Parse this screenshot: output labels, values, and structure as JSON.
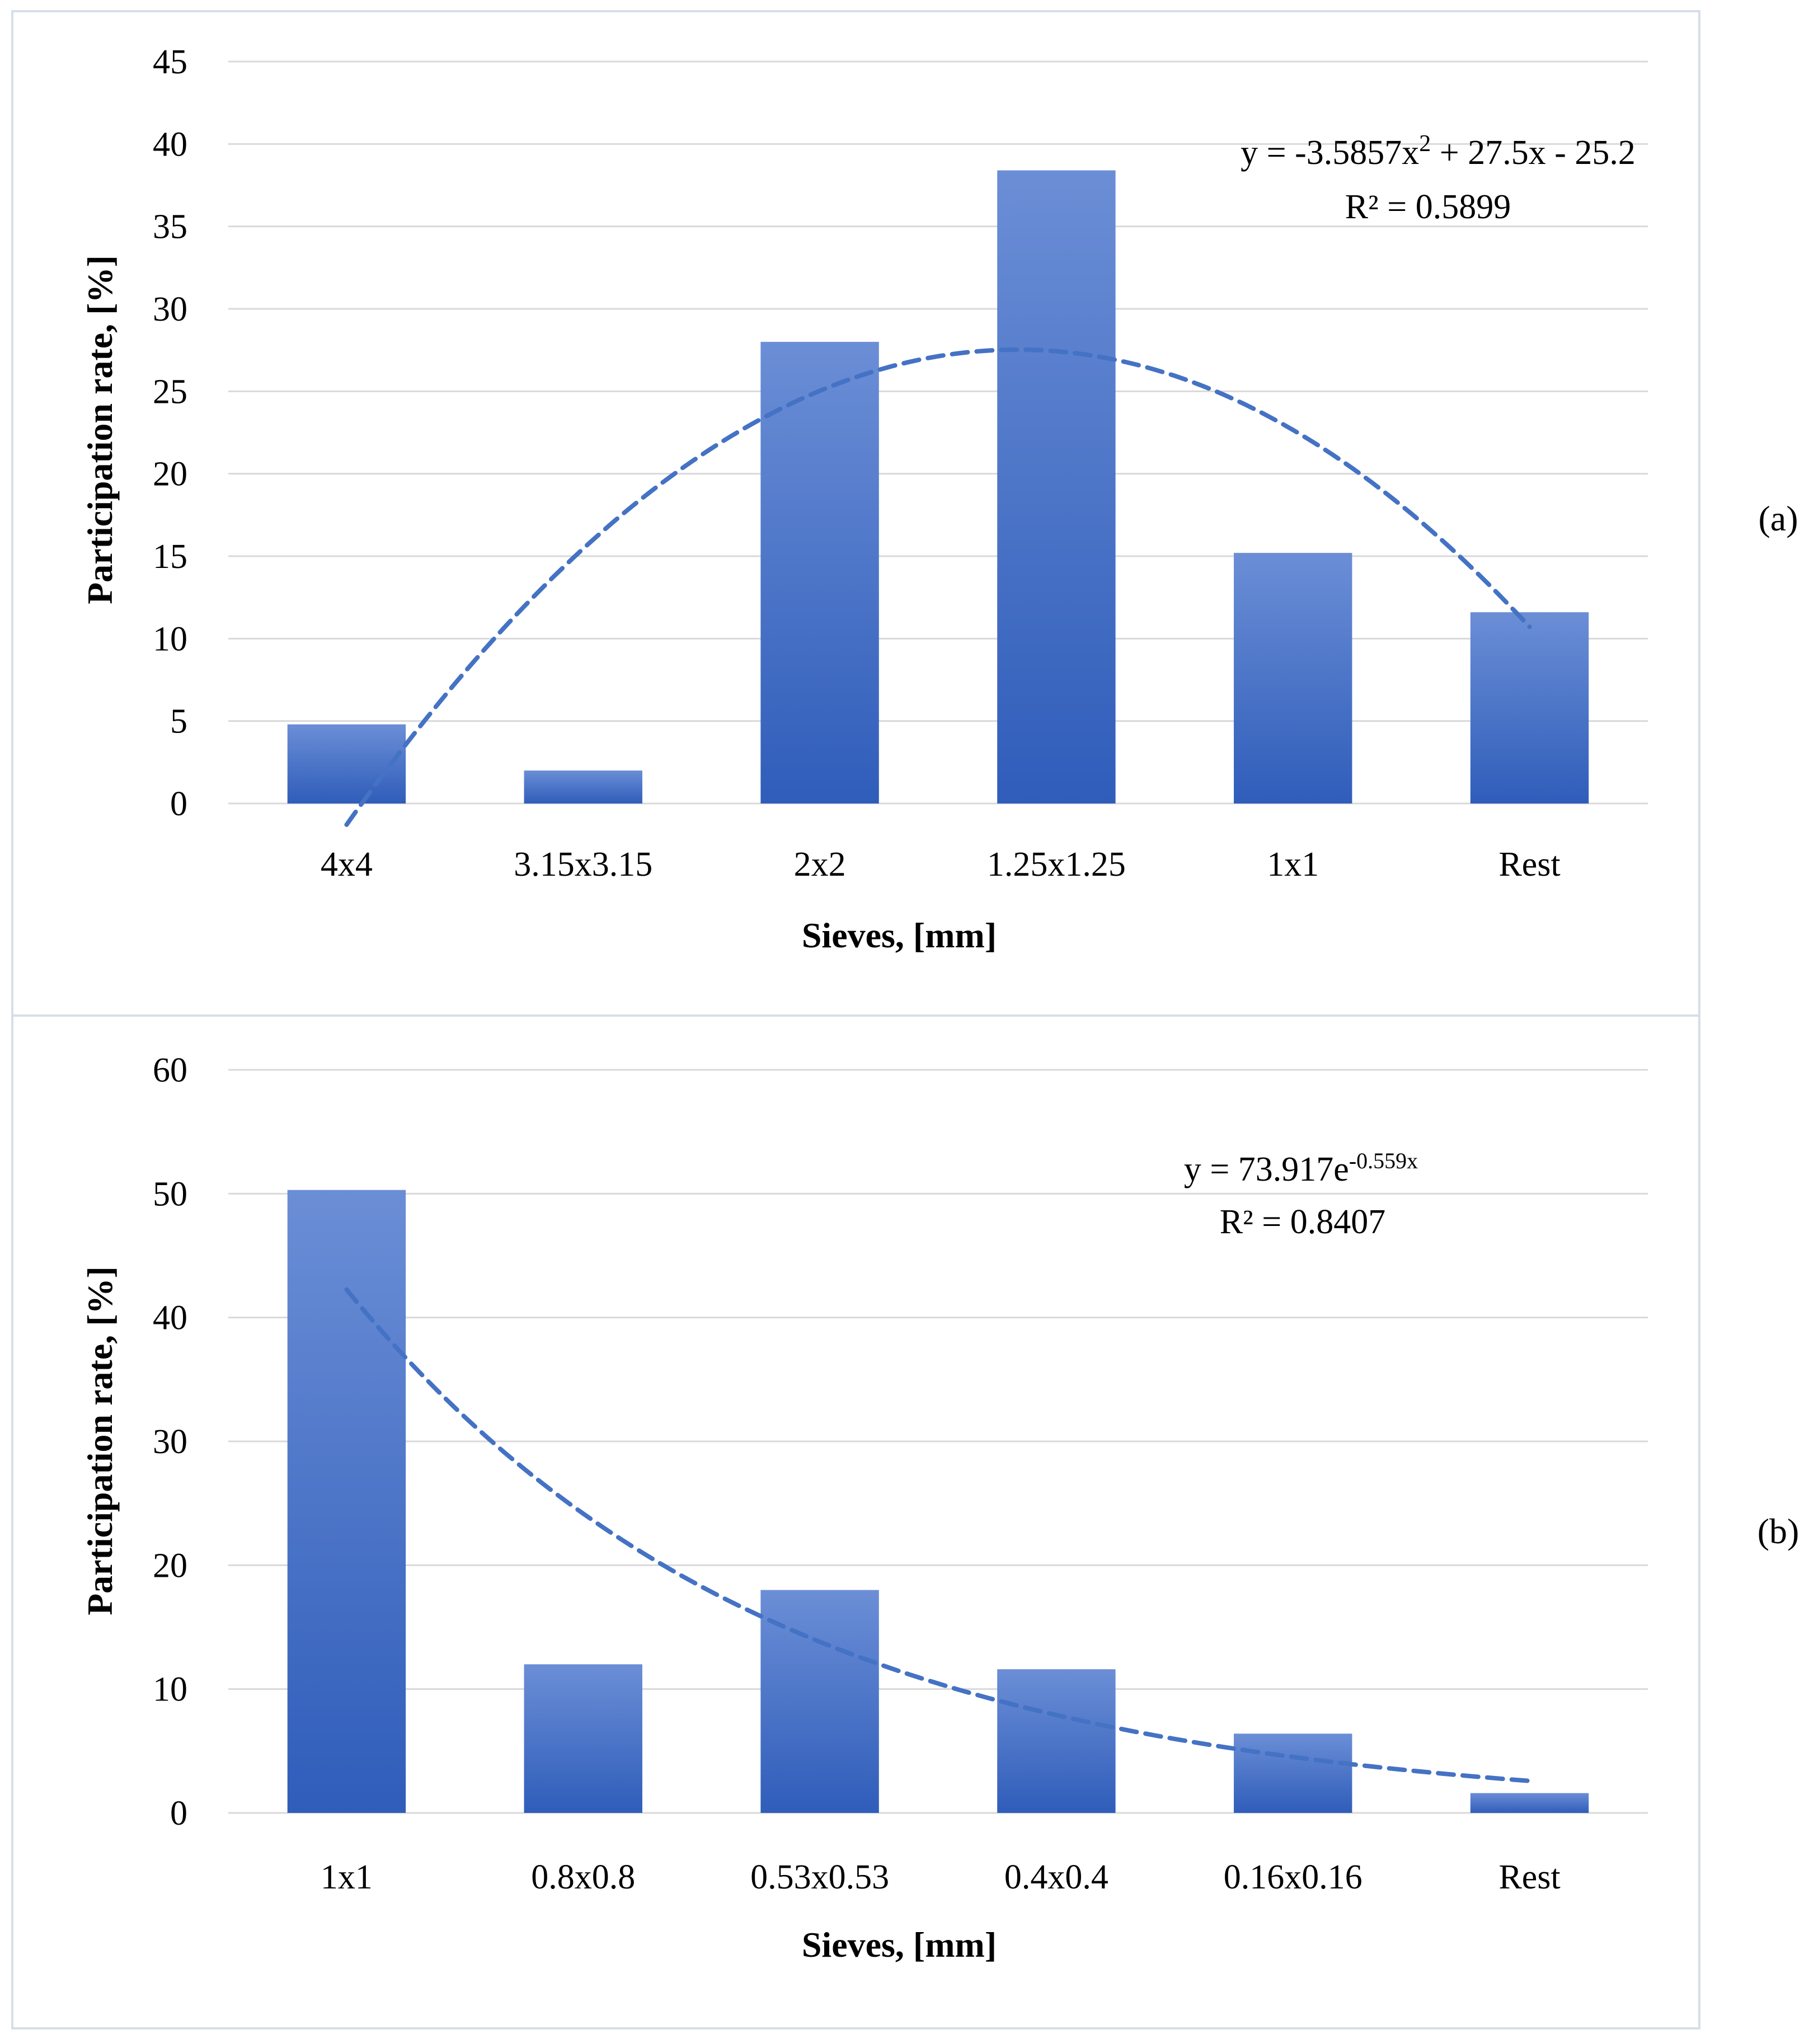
{
  "colors": {
    "bar_top": "#6B8ED6",
    "bar_bottom": "#2F5DBA",
    "trend": "#4472C4",
    "grid": "#D9D9D9",
    "frame": "#D6DEE8"
  },
  "chart_data": [
    {
      "type": "bar",
      "panel_label": "(a)",
      "categories": [
        "4x4",
        "3.15x3.15",
        "2x2",
        "1.25x1.25",
        "1x1",
        "Rest"
      ],
      "values": [
        4.8,
        2.0,
        28.0,
        38.4,
        15.2,
        11.6
      ],
      "ylim": [
        0,
        45
      ],
      "yticks": [
        0,
        5,
        10,
        15,
        20,
        25,
        30,
        35,
        40,
        45
      ],
      "xlabel": "Sieves, [mm]",
      "ylabel": "Participation rate,  [%]",
      "grid": true,
      "trendline": {
        "type": "polynomial",
        "coefficients": [
          -3.5857,
          27.5,
          -25.2
        ],
        "equation_prefix": "y = -3.5857x",
        "equation_sup": "2",
        "equation_suffix": " + 27.5x - 25.2",
        "r_squared": "R² = 0.5899"
      }
    },
    {
      "type": "bar",
      "panel_label": "(b)",
      "categories": [
        "1x1",
        "0.8x0.8",
        "0.53x0.53",
        "0.4x0.4",
        "0.16x0.16",
        "Rest"
      ],
      "values": [
        50.3,
        12.0,
        18.0,
        11.6,
        6.4,
        1.6
      ],
      "ylim": [
        0,
        60
      ],
      "yticks": [
        0,
        10,
        20,
        30,
        40,
        50,
        60
      ],
      "xlabel": "Sieves, [mm]",
      "ylabel": "Participation rate, [%]",
      "grid": true,
      "trendline": {
        "type": "exponential",
        "a": 73.917,
        "b": -0.559,
        "equation_prefix": "y = 73.917e",
        "equation_sup": "-0.559x",
        "equation_suffix": "",
        "r_squared": "R² = 0.8407"
      }
    }
  ]
}
